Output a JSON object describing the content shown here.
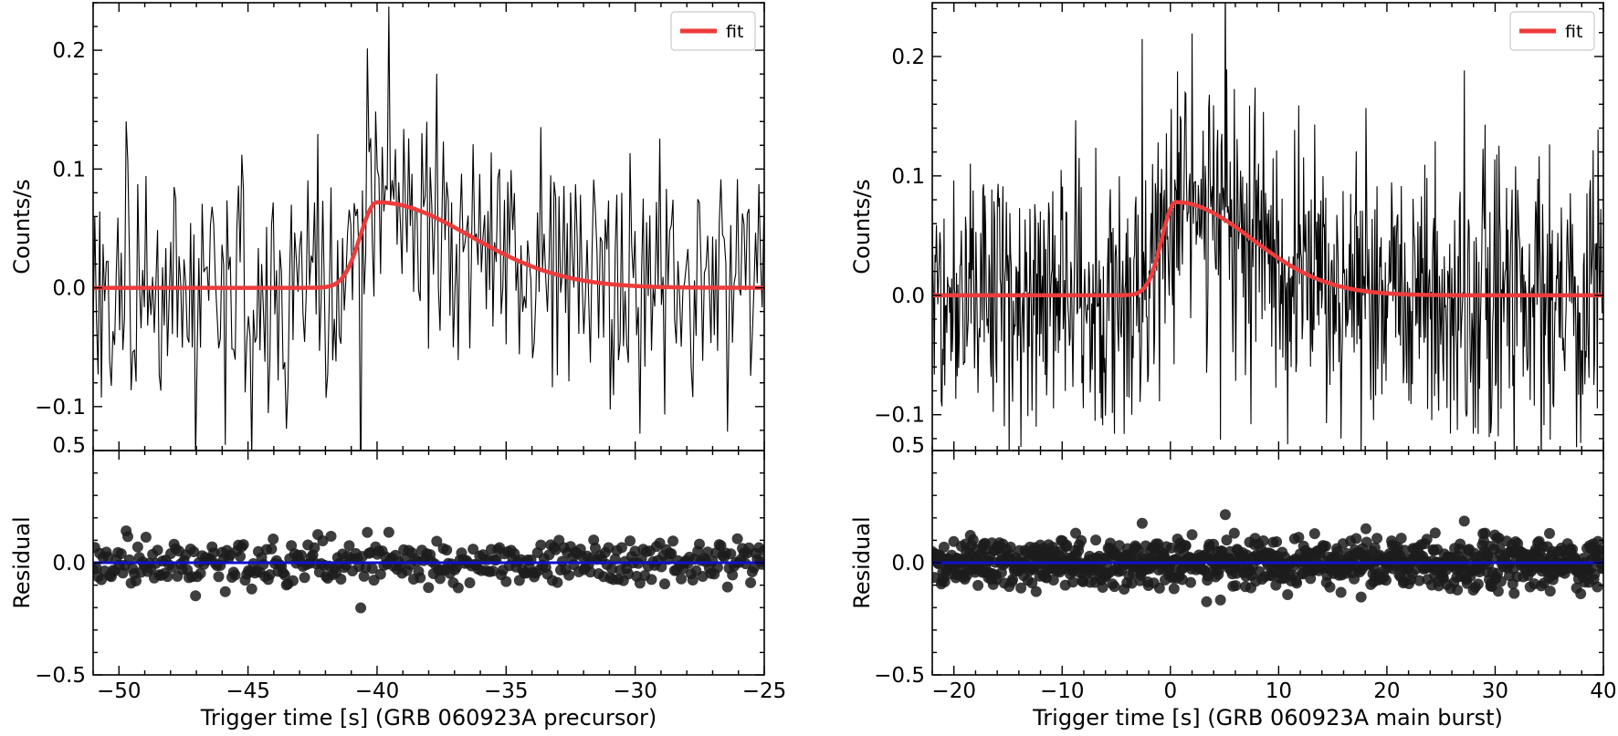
{
  "chart_data": [
    {
      "type": "line",
      "panel": "left",
      "xlabel": "Trigger time [s] (GRB 060923A precursor)",
      "top": {
        "ylabel": "Counts/s",
        "ylim": [
          -0.137,
          0.24
        ],
        "yticks": [
          -0.1,
          0.0,
          0.1,
          0.2
        ],
        "ytick_labels": [
          "−0.1",
          "0.0",
          "0.1",
          "0.2"
        ],
        "extra_tick_label": "0.5",
        "legend": {
          "label": "fit",
          "position": "upper right"
        },
        "series": [
          {
            "name": "data",
            "style": "step",
            "color": "#000000",
            "t_start": -51,
            "dt": 0.064,
            "n_points": 407
          },
          {
            "name": "fit",
            "color": "#ee3b3b",
            "t0": -42.8,
            "peak_t": -40.0,
            "peak_value": 0.072,
            "rise": 0.65,
            "decay": 3.6
          }
        ]
      },
      "bottom": {
        "ylabel": "Residual",
        "ylim": [
          -0.5,
          0.5
        ],
        "yticks": [
          -0.5,
          0.0,
          0.5
        ],
        "ytick_labels": [
          "−0.5",
          "0.0",
          "0.5"
        ],
        "zero_line_color": "#1010d0",
        "residual_point_color": "#1c1c1c",
        "n_points": 407
      },
      "xlim": [
        -51,
        -25
      ],
      "xticks": [
        -50,
        -45,
        -40,
        -35,
        -30,
        -25
      ],
      "xtick_labels": [
        "−50",
        "−45",
        "−40",
        "−35",
        "−30",
        "−25"
      ]
    },
    {
      "type": "line",
      "panel": "right",
      "xlabel": "Trigger time [s] (GRB 060923A main burst)",
      "top": {
        "ylabel": "Counts/s",
        "ylim": [
          -0.13,
          0.245
        ],
        "yticks": [
          -0.1,
          0.0,
          0.1,
          0.2
        ],
        "ytick_labels": [
          "−0.1",
          "0.0",
          "0.1",
          "0.2"
        ],
        "extra_tick_label": "0.5",
        "legend": {
          "label": "fit",
          "position": "upper right"
        },
        "series": [
          {
            "name": "data",
            "style": "step",
            "color": "#000000",
            "t_start": -22,
            "dt": 0.064,
            "n_points": 969
          },
          {
            "name": "fit",
            "color": "#ee3b3b",
            "t0": -4.5,
            "peak_t": 0.5,
            "peak_value": 0.078,
            "rise": 1.3,
            "decay": 7.0
          }
        ]
      },
      "bottom": {
        "ylabel": "Residual",
        "ylim": [
          -0.5,
          0.5
        ],
        "yticks": [
          -0.5,
          0.0,
          0.5
        ],
        "ytick_labels": [
          "−0.5",
          "0.0",
          "0.5"
        ],
        "zero_line_color": "#1010d0",
        "residual_point_color": "#1c1c1c",
        "n_points": 969
      },
      "xlim": [
        -22,
        40
      ],
      "xticks": [
        -20,
        -10,
        0,
        10,
        20,
        30,
        40
      ],
      "xtick_labels": [
        "−20",
        "−10",
        "0",
        "10",
        "20",
        "30",
        "40"
      ]
    }
  ]
}
